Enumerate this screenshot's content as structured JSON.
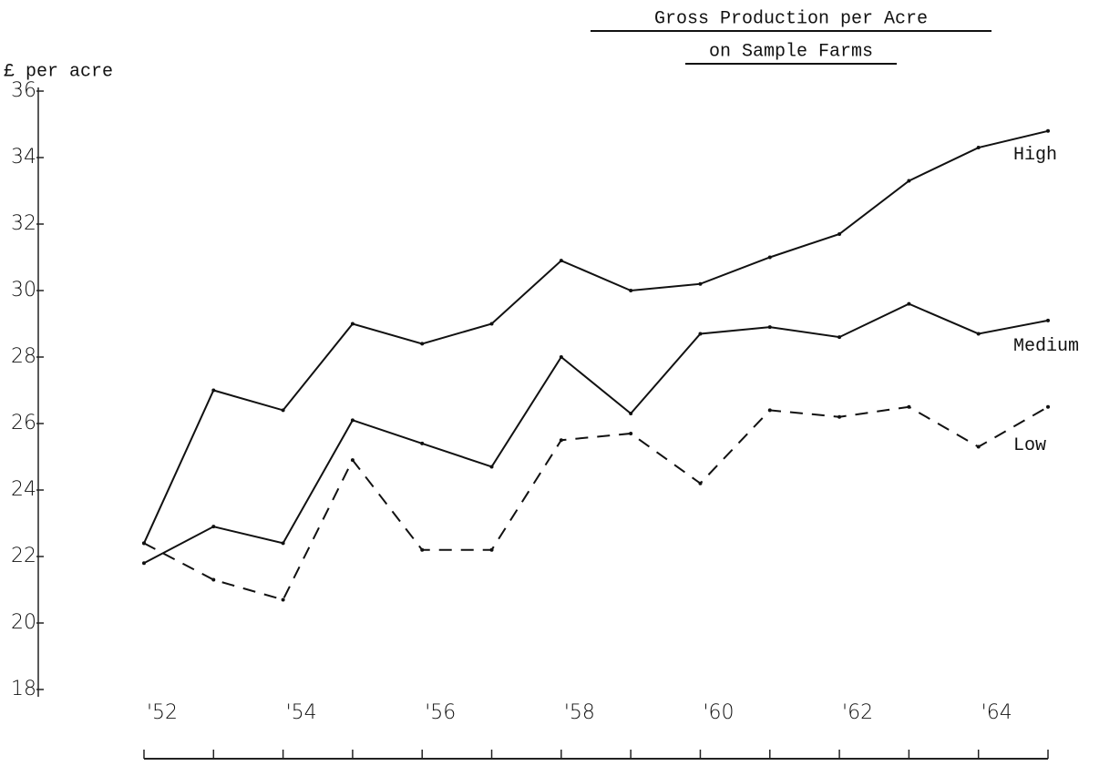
{
  "chart_data": {
    "type": "line",
    "title": "Gross Production per Acre",
    "subtitle": "on Sample Farms",
    "y_label": "£ per acre",
    "x": [
      1952,
      1953,
      1954,
      1955,
      1956,
      1957,
      1958,
      1959,
      1960,
      1961,
      1962,
      1963,
      1964,
      1965
    ],
    "series": [
      {
        "name": "High",
        "color": "#111111",
        "dash": false,
        "values": [
          22.4,
          27.0,
          26.4,
          29.0,
          28.4,
          29.0,
          30.9,
          30.0,
          30.2,
          31.0,
          31.7,
          33.3,
          34.3,
          34.8
        ]
      },
      {
        "name": "Medium",
        "color": "#111111",
        "dash": false,
        "values": [
          21.8,
          22.9,
          22.4,
          26.1,
          25.4,
          24.7,
          28.0,
          26.3,
          28.7,
          28.9,
          28.6,
          29.6,
          28.7,
          29.1
        ]
      },
      {
        "name": "Low",
        "color": "#111111",
        "dash": true,
        "values": [
          22.4,
          21.3,
          20.7,
          24.9,
          22.2,
          22.2,
          25.5,
          25.7,
          24.2,
          26.4,
          26.2,
          26.5,
          25.3,
          26.5
        ]
      }
    ],
    "xlim": [
      1952,
      1965
    ],
    "xticks": [
      {
        "value": 1952,
        "label": "'52"
      },
      {
        "value": 1954,
        "label": "'54"
      },
      {
        "value": 1956,
        "label": "'56"
      },
      {
        "value": 1958,
        "label": "'58"
      },
      {
        "value": 1960,
        "label": "'60"
      },
      {
        "value": 1962,
        "label": "'62"
      },
      {
        "value": 1964,
        "label": "'64"
      }
    ],
    "ylim": [
      18,
      36
    ],
    "yticks": [
      18,
      20,
      22,
      24,
      26,
      28,
      30,
      32,
      34,
      36
    ],
    "grid": false
  }
}
